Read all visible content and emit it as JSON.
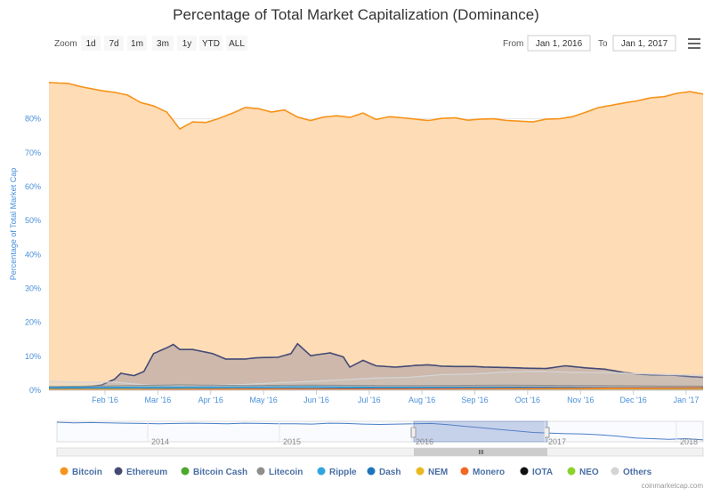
{
  "chart_data": {
    "type": "area",
    "title": "Percentage of Total Market Capitalization (Dominance)",
    "ylabel": "Percentage of Total Market Cap",
    "xlabel": "",
    "ylim": [
      0,
      93
    ],
    "y_ticks": [
      "0%",
      "10%",
      "20%",
      "30%",
      "40%",
      "50%",
      "60%",
      "70%",
      "80%"
    ],
    "x_ticks": [
      "Feb '16",
      "Mar '16",
      "Apr '16",
      "May '16",
      "Jun '16",
      "Jul '16",
      "Aug '16",
      "Sep '16",
      "Oct '16",
      "Nov '16",
      "Dec '16",
      "Jan '17"
    ],
    "grid": true,
    "legend_position": "bottom",
    "series": [
      {
        "name": "Bitcoin",
        "color": "#f7931a",
        "x": [
          0,
          3,
          5,
          8,
          10,
          12,
          14,
          16,
          18,
          20,
          22,
          24,
          26,
          28,
          30,
          32,
          34,
          36,
          38,
          40,
          42,
          44,
          46,
          48,
          50,
          52,
          54,
          56,
          58,
          60,
          62,
          64,
          66,
          68,
          70,
          72,
          74,
          76,
          78,
          80,
          82,
          84,
          86,
          88,
          90,
          92,
          94,
          96,
          98,
          100
        ],
        "values": [
          90.7,
          90.4,
          89.4,
          88.3,
          87.8,
          87.0,
          84.8,
          83.8,
          82.0,
          77.0,
          79.1,
          78.9,
          80.1,
          81.6,
          83.3,
          83.0,
          82.0,
          82.6,
          80.5,
          79.5,
          80.5,
          80.9,
          80.4,
          81.7,
          79.8,
          80.6,
          80.3,
          79.9,
          79.5,
          80.1,
          80.3,
          79.6,
          79.9,
          80.0,
          79.5,
          79.3,
          79.1,
          79.9,
          80.0,
          80.6,
          81.9,
          83.3,
          84.0,
          84.7,
          85.3,
          86.2,
          86.5,
          87.5,
          88.0,
          87.3
        ]
      },
      {
        "name": "Ethereum",
        "color": "#454a75",
        "x": [
          0,
          5,
          8,
          10,
          11,
          13,
          14.5,
          16,
          18,
          19,
          20,
          22,
          25,
          27,
          30,
          32,
          35,
          37,
          38,
          40,
          43,
          45,
          46,
          48,
          50,
          53,
          56,
          58,
          60,
          62,
          65,
          67,
          70,
          73,
          76,
          79,
          82,
          85,
          88,
          90,
          92,
          95,
          98,
          100
        ],
        "values": [
          0.5,
          0.8,
          1.5,
          3.2,
          5.0,
          4.3,
          5.5,
          10.8,
          12.5,
          13.5,
          12.0,
          12.0,
          10.8,
          9.2,
          9.2,
          9.6,
          9.7,
          10.8,
          13.7,
          10.2,
          11.0,
          9.8,
          6.8,
          8.8,
          7.2,
          6.8,
          7.3,
          7.5,
          7.1,
          7.0,
          7.0,
          6.8,
          6.7,
          6.5,
          6.4,
          7.2,
          6.6,
          6.2,
          5.2,
          4.8,
          4.5,
          4.5,
          4.0,
          3.8
        ]
      },
      {
        "name": "Bitcoin Cash",
        "color": "#4ca82a",
        "x": [],
        "values": []
      },
      {
        "name": "Litecoin",
        "color": "#8e8e8e",
        "x": [
          0,
          10,
          20,
          30,
          40,
          50,
          60,
          70,
          80,
          90,
          100
        ],
        "values": [
          1.1,
          1.3,
          1.6,
          1.4,
          1.5,
          1.4,
          1.4,
          1.5,
          1.4,
          1.3,
          1.2
        ]
      },
      {
        "name": "Ripple",
        "color": "#2fa6e0",
        "x": [
          0,
          10,
          20,
          30,
          40,
          50,
          60,
          70,
          80,
          90,
          100
        ],
        "values": [
          0.9,
          0.9,
          1.0,
          1.0,
          1.1,
          0.9,
          0.9,
          0.9,
          0.8,
          0.7,
          0.8
        ]
      },
      {
        "name": "Dash",
        "color": "#1c75bc",
        "x": [
          0,
          10,
          20,
          30,
          40,
          50,
          60,
          70,
          80,
          90,
          100
        ],
        "values": [
          0.6,
          0.6,
          0.6,
          0.6,
          0.6,
          0.7,
          0.8,
          0.9,
          0.8,
          0.7,
          0.7
        ]
      },
      {
        "name": "NEM",
        "color": "#e8b81e",
        "x": [
          0,
          10,
          20,
          30,
          40,
          50,
          60,
          70,
          80,
          90,
          100
        ],
        "values": [
          0.3,
          0.3,
          0.3,
          0.4,
          0.4,
          0.4,
          0.4,
          0.4,
          0.4,
          0.4,
          0.4
        ]
      },
      {
        "name": "Monero",
        "color": "#f26822",
        "x": [
          0,
          10,
          20,
          30,
          40,
          50,
          60,
          70,
          80,
          90,
          100
        ],
        "values": [
          0.1,
          0.1,
          0.2,
          0.3,
          0.4,
          0.4,
          0.4,
          0.5,
          0.6,
          0.7,
          0.8
        ]
      },
      {
        "name": "IOTA",
        "color": "#111111",
        "x": [],
        "values": []
      },
      {
        "name": "NEO",
        "color": "#8ed12c",
        "x": [],
        "values": []
      },
      {
        "name": "Others",
        "color": "#d4d4d4",
        "x": [
          0,
          5,
          10,
          15,
          20,
          25,
          30,
          35,
          40,
          45,
          50,
          55,
          60,
          65,
          70,
          75,
          80,
          85,
          90,
          95,
          100
        ],
        "values": [
          2.6,
          2.3,
          2.4,
          1.5,
          1.4,
          1.5,
          1.7,
          2.2,
          2.6,
          3.1,
          3.6,
          3.8,
          4.6,
          4.8,
          5.4,
          5.6,
          5.3,
          5.2,
          4.9,
          4.6,
          4.4
        ]
      }
    ]
  },
  "zoom": {
    "label": "Zoom",
    "buttons": [
      "1d",
      "7d",
      "1m",
      "3m",
      "1y",
      "YTD",
      "ALL"
    ]
  },
  "range": {
    "from_label": "From",
    "from_value": "Jan 1, 2016",
    "to_label": "To",
    "to_value": "Jan 1, 2017"
  },
  "navigator": {
    "years": [
      "2014",
      "2015",
      "2016",
      "2017",
      "2018"
    ],
    "values": [
      93,
      91,
      92,
      91,
      90,
      89,
      88,
      89,
      90,
      89,
      88,
      90,
      89,
      88,
      88,
      87,
      90,
      89,
      87,
      86,
      87,
      88,
      89,
      85,
      80,
      75,
      70,
      65,
      60,
      58,
      56,
      55,
      52,
      48,
      42,
      40,
      38,
      40,
      36
    ]
  },
  "credit": "coinmarketcap.com"
}
